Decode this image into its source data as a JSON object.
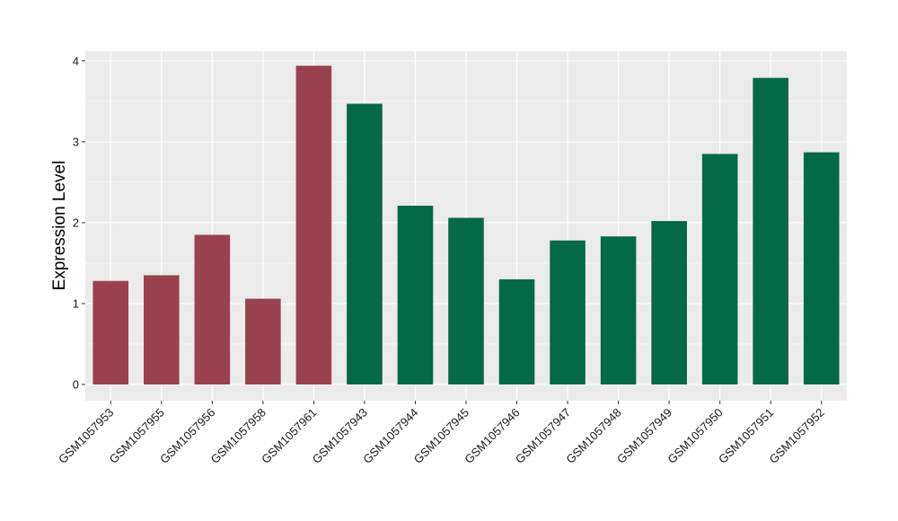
{
  "chart_data": {
    "type": "bar",
    "title": "",
    "xlabel": "",
    "ylabel": "Expression Level",
    "ylim": [
      -0.2,
      4.12
    ],
    "yticks": [
      0,
      1,
      2,
      3,
      4
    ],
    "grid": true,
    "legend": "none",
    "categories": [
      "GSM1057953",
      "GSM1057955",
      "GSM1057956",
      "GSM1057958",
      "GSM1057961",
      "GSM1057943",
      "GSM1057944",
      "GSM1057945",
      "GSM1057946",
      "GSM1057947",
      "GSM1057948",
      "GSM1057949",
      "GSM1057950",
      "GSM1057951",
      "GSM1057952"
    ],
    "values": [
      1.28,
      1.35,
      1.85,
      1.06,
      3.94,
      3.47,
      2.21,
      2.06,
      1.3,
      1.78,
      1.83,
      2.02,
      2.85,
      3.79,
      2.87
    ],
    "groups": [
      "a",
      "a",
      "a",
      "a",
      "a",
      "b",
      "b",
      "b",
      "b",
      "b",
      "b",
      "b",
      "b",
      "b",
      "b"
    ],
    "group_colors": {
      "a": "#9a4150",
      "b": "#036946"
    },
    "panel_color": "#ebebeb",
    "grid_color": "#ffffff"
  }
}
